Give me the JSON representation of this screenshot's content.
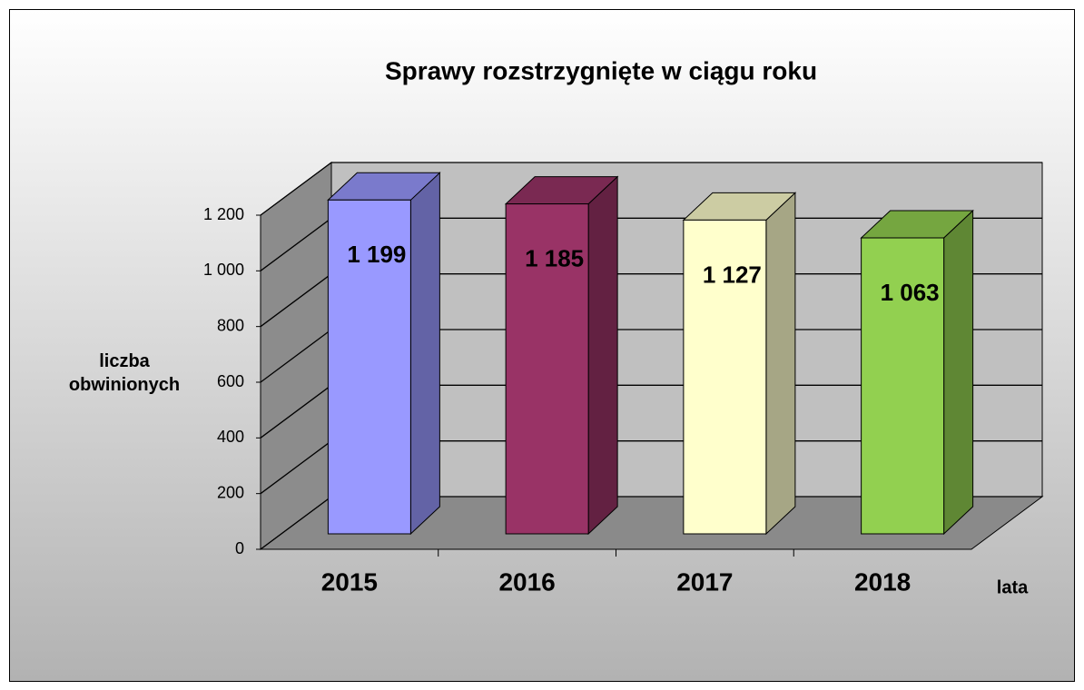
{
  "chart_data": {
    "type": "bar3d",
    "title": "Sprawy rozstrzygnięte w ciągu roku",
    "y_label": "liczba obwinionych",
    "x_label": "lata",
    "categories": [
      "2015",
      "2016",
      "2017",
      "2018"
    ],
    "values": [
      1199,
      1185,
      1127,
      1063
    ],
    "value_labels": [
      "1 199",
      "1 185",
      "1 127",
      "1 063"
    ],
    "colors": [
      "#9999ff",
      "#993366",
      "#ffffcc",
      "#92d050"
    ],
    "ylim": [
      0,
      1200
    ],
    "yticks": [
      0,
      200,
      400,
      600,
      800,
      {
        "value": 1000,
        "label": "1 000"
      },
      {
        "value": 1200,
        "label": "1 200"
      }
    ],
    "grid": true
  }
}
